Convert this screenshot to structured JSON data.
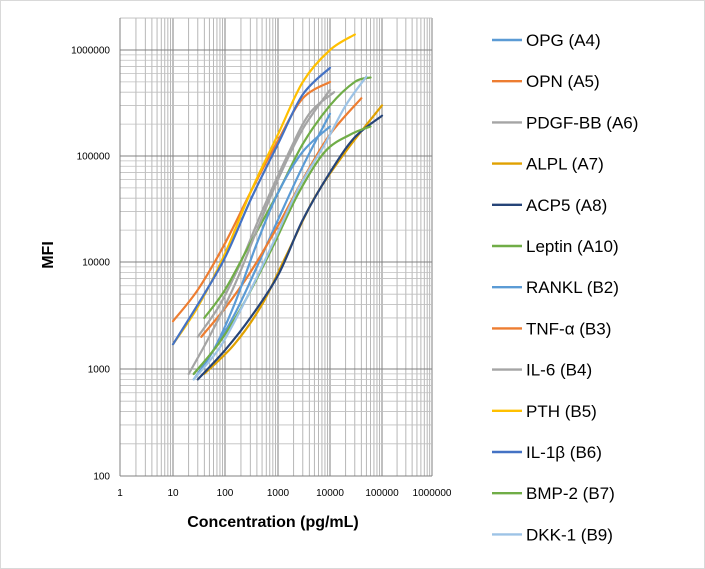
{
  "chart_data": {
    "type": "line",
    "title": "",
    "xlabel": "Concentration (pg/mL)",
    "ylabel": "MFI",
    "x_scale": "log",
    "y_scale": "log",
    "xlim": [
      1,
      1000000
    ],
    "ylim": [
      100,
      2000000
    ],
    "x_ticks": [
      1,
      10,
      100,
      1000,
      10000,
      100000,
      1000000
    ],
    "x_tick_labels": [
      "1",
      "10",
      "100",
      "1000",
      "10000",
      "100000",
      "1000000"
    ],
    "y_ticks": [
      100,
      1000,
      10000,
      100000,
      1000000
    ],
    "y_tick_labels": [
      "100",
      "1000",
      "10000",
      "100000",
      "1000000"
    ],
    "grid": true,
    "legend_position": "right",
    "series": [
      {
        "name": "OPG (A4)",
        "color": "#5B9BD5",
        "x": [
          25,
          60,
          150,
          400,
          1000,
          3000,
          10000
        ],
        "y": [
          900,
          1500,
          3200,
          9000,
          25000,
          80000,
          250000
        ]
      },
      {
        "name": "OPN (A5)",
        "color": "#ED7D31",
        "x": [
          35,
          100,
          300,
          1000,
          3000,
          10000,
          40000
        ],
        "y": [
          2000,
          3700,
          8000,
          22000,
          60000,
          160000,
          350000
        ]
      },
      {
        "name": "PDGF-BB (A6)",
        "color": "#A5A5A5",
        "x": [
          30,
          80,
          200,
          500,
          1500,
          4000,
          12000
        ],
        "y": [
          2000,
          4000,
          10000,
          30000,
          100000,
          250000,
          400000
        ]
      },
      {
        "name": "ALPL (A7)",
        "color": "#E0A100",
        "x": [
          40,
          150,
          500,
          1500,
          5000,
          20000,
          100000
        ],
        "y": [
          900,
          1700,
          4000,
          12000,
          40000,
          110000,
          300000
        ]
      },
      {
        "name": "ACP5 (A8)",
        "color": "#264478",
        "x": [
          30,
          100,
          300,
          1000,
          3000,
          10000,
          30000,
          100000
        ],
        "y": [
          800,
          1500,
          3000,
          7500,
          25000,
          70000,
          150000,
          240000
        ]
      },
      {
        "name": "Leptin (A10)",
        "color": "#70AD47",
        "x": [
          40,
          100,
          300,
          1000,
          3000,
          10000,
          30000,
          60000
        ],
        "y": [
          3000,
          5500,
          15000,
          45000,
          130000,
          300000,
          500000,
          550000
        ]
      },
      {
        "name": "RANKL (B2)",
        "color": "#5B9BD5",
        "x": [
          25,
          60,
          150,
          400,
          1000,
          3000,
          10000
        ],
        "y": [
          800,
          1500,
          4000,
          15000,
          45000,
          110000,
          190000
        ]
      },
      {
        "name": "TNF-α (B3)",
        "color": "#ED7D31",
        "x": [
          10,
          30,
          100,
          300,
          1000,
          3000,
          10000
        ],
        "y": [
          2800,
          5500,
          15000,
          45000,
          140000,
          350000,
          500000
        ]
      },
      {
        "name": "IL-6 (B4)",
        "color": "#A5A5A5",
        "x": [
          20,
          50,
          150,
          400,
          1000,
          3000,
          10000
        ],
        "y": [
          900,
          2000,
          6000,
          20000,
          60000,
          180000,
          420000
        ]
      },
      {
        "name": "PTH (B5)",
        "color": "#FFC000",
        "x": [
          10,
          30,
          100,
          300,
          1000,
          3000,
          10000,
          30000
        ],
        "y": [
          1700,
          3800,
          12000,
          45000,
          160000,
          500000,
          1000000,
          1400000
        ]
      },
      {
        "name": "IL-1β (B6)",
        "color": "#4472C4",
        "x": [
          10,
          30,
          100,
          300,
          1000,
          3000,
          10000
        ],
        "y": [
          1700,
          4000,
          11000,
          38000,
          130000,
          380000,
          680000
        ]
      },
      {
        "name": "BMP-2 (B7)",
        "color": "#70AD47",
        "x": [
          25,
          80,
          250,
          800,
          2500,
          8000,
          25000,
          60000
        ],
        "y": [
          900,
          1800,
          4500,
          14000,
          45000,
          110000,
          160000,
          190000
        ]
      },
      {
        "name": "DKK-1 (B9)",
        "color": "#9DC3E6",
        "x": [
          25,
          80,
          250,
          800,
          2500,
          8000,
          20000,
          50000
        ],
        "y": [
          800,
          1600,
          4500,
          15000,
          50000,
          130000,
          300000,
          560000
        ]
      }
    ]
  }
}
